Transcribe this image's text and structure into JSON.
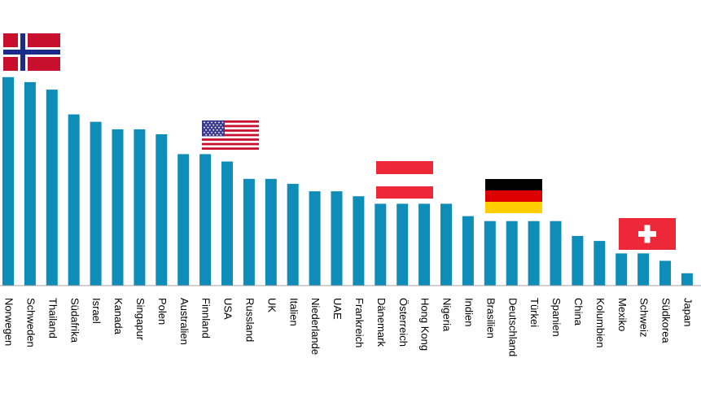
{
  "chart_data": {
    "type": "bar",
    "title": "",
    "xlabel": "",
    "ylabel": "",
    "ylim": [
      0,
      100
    ],
    "grid": false,
    "bar_color": "#0E8DB8",
    "axis_color": "#A0A0A0",
    "categories": [
      "Norwegen",
      "Schweden",
      "Thailand",
      "Südafrika",
      "Israel",
      "Kanada",
      "Singapur",
      "Polen",
      "Australien",
      "Finnland",
      "USA",
      "Russland",
      "UK",
      "Italien",
      "Niederlande",
      "UAE",
      "Frankreich",
      "Dänemark",
      "Österreich",
      "Hong Kong",
      "Nigeria",
      "Indien",
      "Brasilien",
      "Deutschland",
      "Türkei",
      "Spanien",
      "China",
      "Kolumbien",
      "Mexiko",
      "Schweiz",
      "Südkorea",
      "Japan"
    ],
    "values": [
      84,
      82,
      79,
      69,
      66,
      63,
      63,
      61,
      53,
      53,
      50,
      43,
      43,
      41,
      38,
      38,
      36,
      33,
      33,
      33,
      33,
      28,
      26,
      26,
      26,
      26,
      20,
      18,
      13,
      13,
      10,
      5
    ],
    "flags": [
      {
        "category": "Norwegen",
        "icon": "norway-flag-icon"
      },
      {
        "category": "Finnland",
        "icon": "usa-flag-icon"
      },
      {
        "category": "Dänemark",
        "icon": "austria-flag-icon"
      },
      {
        "category": "Brasilien",
        "icon": "germany-flag-icon"
      },
      {
        "category": "Mexiko",
        "icon": "switzerland-flag-icon"
      }
    ]
  }
}
